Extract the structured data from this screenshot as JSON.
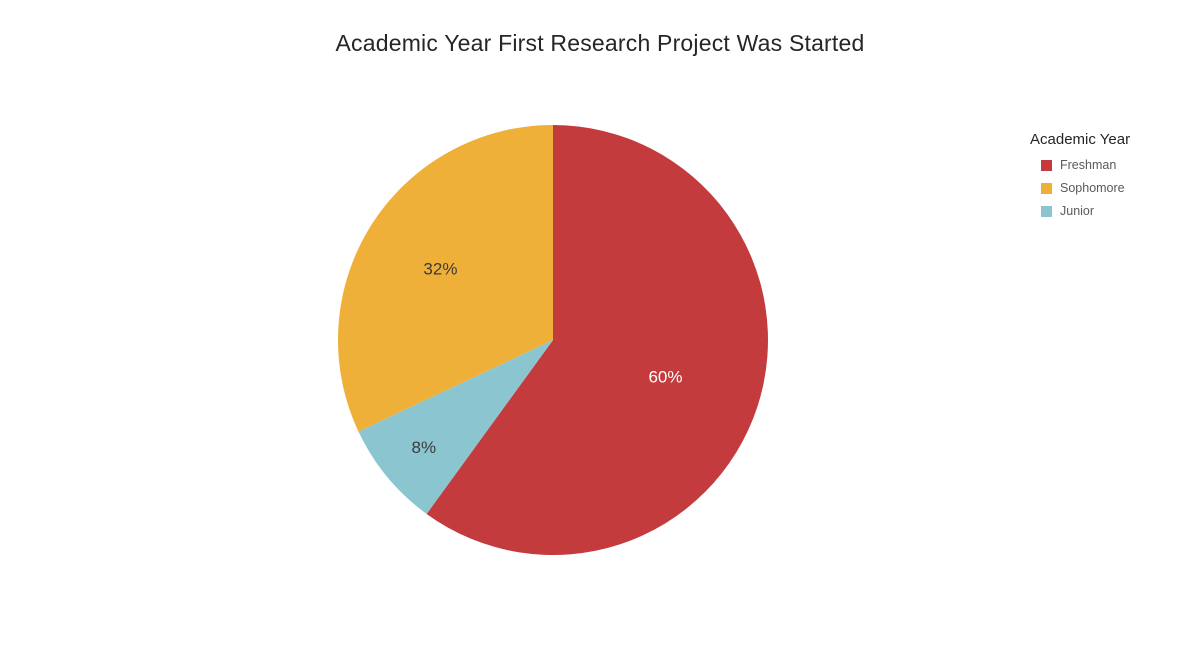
{
  "chart_data": {
    "type": "pie",
    "title": "Academic Year First Research Project Was Started",
    "unit": "%",
    "categories": [
      "Freshman",
      "Sophomore",
      "Junior"
    ],
    "values": [
      60,
      32,
      8
    ],
    "slices": [
      {
        "name": "Freshman",
        "value": 60,
        "label": "60%",
        "color": "#C43B3E",
        "label_color": "#ffffff",
        "label_r": 0.55
      },
      {
        "name": "Junior",
        "value": 8,
        "label": "8%",
        "color": "#8BC5D0",
        "label_color": "#3b3b3b",
        "label_r": 0.78
      },
      {
        "name": "Sophomore",
        "value": 32,
        "label": "32%",
        "color": "#EFB03A",
        "label_color": "#3b3b3b",
        "label_r": 0.62
      }
    ],
    "legend": {
      "title": "Academic Year",
      "position": "right",
      "items": [
        {
          "label": "Freshman",
          "color": "#C43B3E"
        },
        {
          "label": "Sophomore",
          "color": "#EFB03A"
        },
        {
          "label": "Junior",
          "color": "#8BC5D0"
        }
      ]
    },
    "layout": {
      "start_angle_deg": -90,
      "direction": "clockwise",
      "background": "#ffffff"
    }
  }
}
